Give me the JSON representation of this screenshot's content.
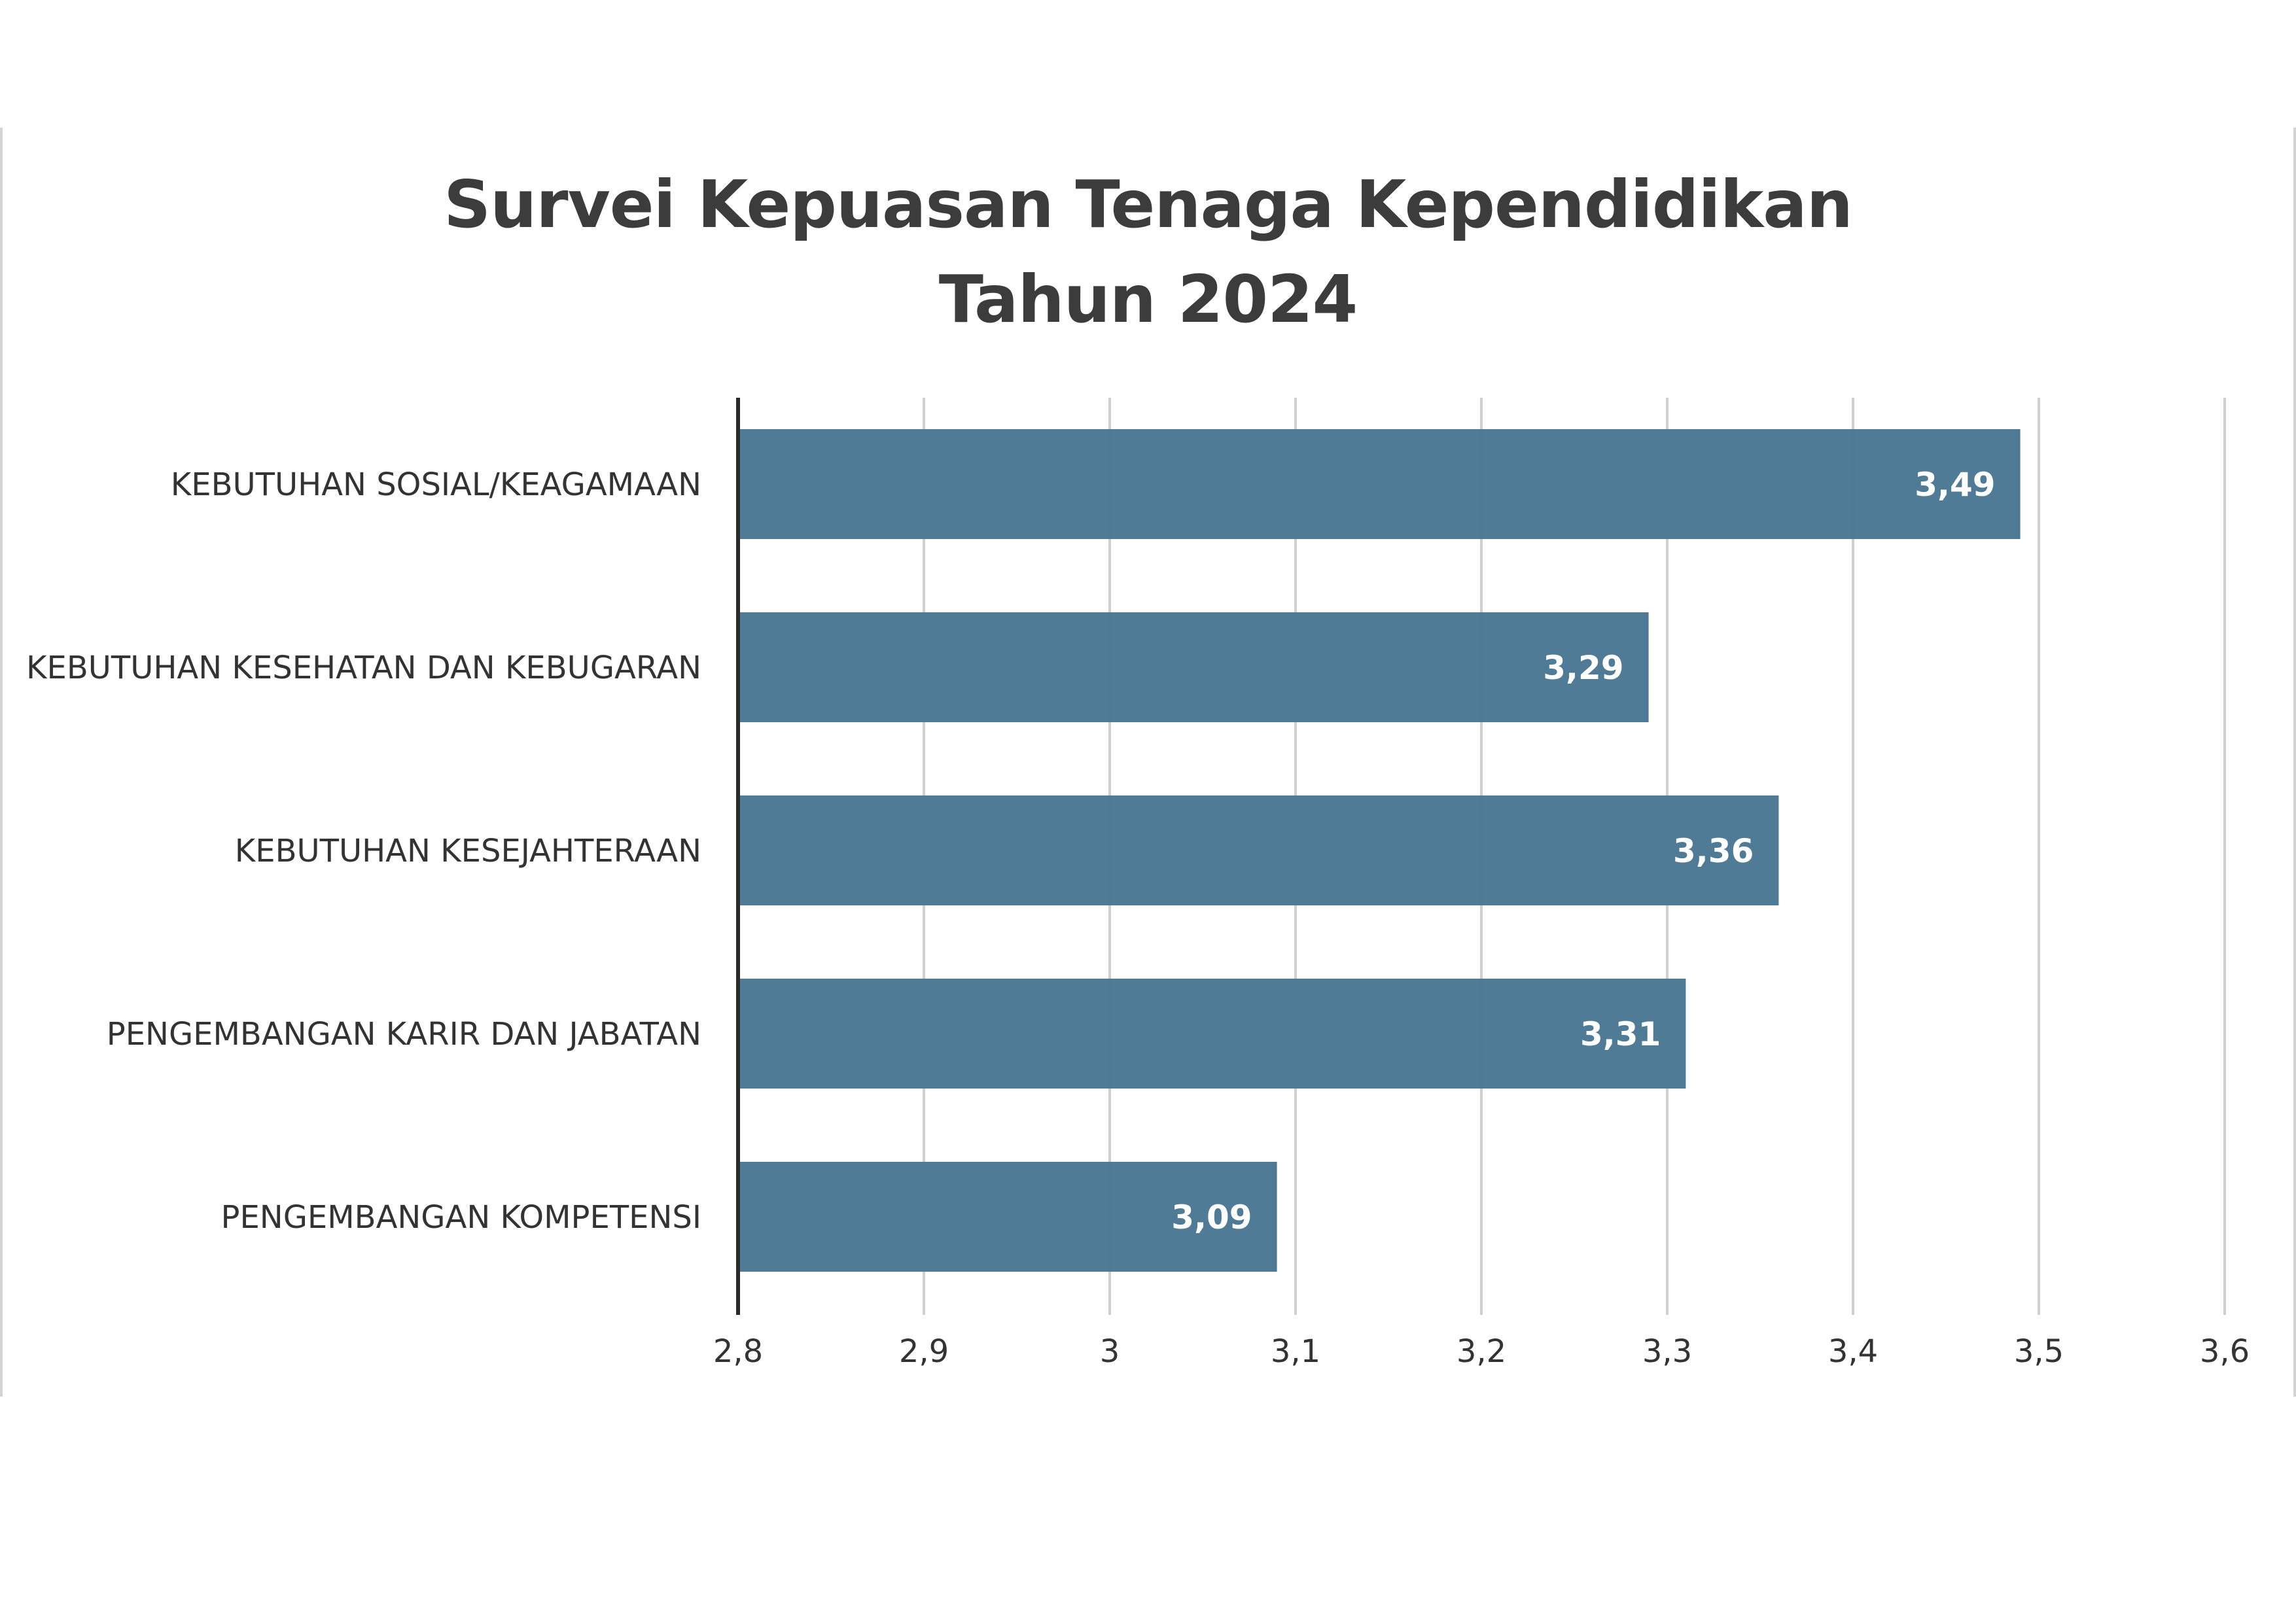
{
  "chart_data": {
    "type": "bar",
    "orientation": "horizontal",
    "title": [
      "Survei Kepuasan Tenaga Kependidikan",
      "Tahun 2024"
    ],
    "categories": [
      "KEBUTUHAN SOSIAL/KEAGAMAAN",
      "KEBUTUHAN KESEHATAN DAN KEBUGARAN",
      "KEBUTUHAN KESEJAHTERAAN",
      "PENGEMBANGAN KARIR DAN JABATAN",
      "PENGEMBANGAN KOMPETENSI"
    ],
    "values": [
      3.49,
      3.29,
      3.36,
      3.31,
      3.09
    ],
    "data_labels": [
      "3,49",
      "3,29",
      "3,36",
      "3,31",
      "3,09"
    ],
    "xlim": [
      2.8,
      3.6
    ],
    "ticks": [
      2.8,
      2.9,
      3.0,
      3.1,
      3.2,
      3.3,
      3.4,
      3.5,
      3.6
    ],
    "tick_labels": [
      "2,8",
      "2,9",
      "3",
      "3,1",
      "3,2",
      "3,3",
      "3,4",
      "3,5",
      "3,6"
    ],
    "grid": true,
    "legend": "none",
    "bar_color": "#4a7793",
    "gridline_color": "#d0d0d0",
    "axis_color": "#2b2b2b"
  }
}
